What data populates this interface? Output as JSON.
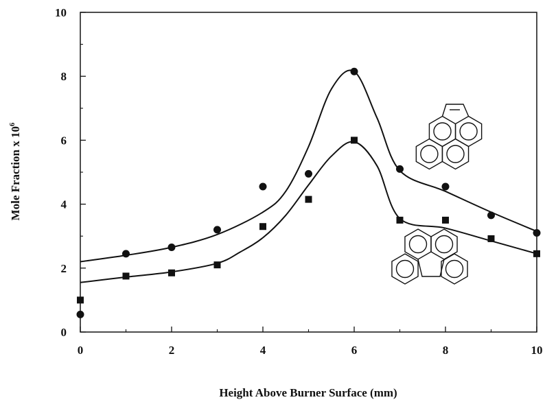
{
  "chart_data": {
    "type": "scatter",
    "title": "",
    "xlabel": "Height Above Burner Surface (mm)",
    "ylabel": "Mole Fraction x 10",
    "ylabel_exponent": "6",
    "xlim": [
      0,
      10
    ],
    "ylim": [
      0,
      10
    ],
    "x_ticks": [
      "0",
      "2",
      "4",
      "6",
      "8",
      "10"
    ],
    "y_ticks": [
      "0",
      "2",
      "4",
      "6",
      "8",
      "10"
    ],
    "grid": false,
    "legend": "none",
    "series": [
      {
        "marker": "circle",
        "color": "#111111",
        "x": [
          0,
          1,
          2,
          3,
          4,
          5,
          6,
          7,
          8,
          9,
          10
        ],
        "y": [
          0.55,
          2.45,
          2.65,
          3.2,
          4.55,
          4.95,
          8.15,
          5.1,
          4.55,
          3.65,
          3.1
        ],
        "fit_x": [
          0,
          1,
          2,
          3,
          4,
          4.5,
          5,
          5.5,
          6,
          6.5,
          7,
          8,
          9,
          10
        ],
        "fit_y": [
          2.2,
          2.4,
          2.65,
          3.05,
          3.75,
          4.4,
          5.8,
          7.6,
          8.15,
          6.7,
          5.05,
          4.4,
          3.75,
          3.15
        ]
      },
      {
        "marker": "square",
        "color": "#111111",
        "x": [
          0,
          1,
          2,
          3,
          4,
          5,
          6,
          7,
          8,
          9,
          10
        ],
        "y": [
          1.0,
          1.75,
          1.85,
          2.1,
          3.3,
          4.15,
          6.0,
          3.5,
          3.5,
          2.92,
          2.45
        ],
        "fit_x": [
          0,
          1,
          2,
          3,
          3.5,
          4,
          4.5,
          5,
          5.5,
          6,
          6.5,
          7,
          8,
          9,
          10
        ],
        "fit_y": [
          1.55,
          1.72,
          1.88,
          2.15,
          2.5,
          2.95,
          3.65,
          4.6,
          5.5,
          5.95,
          5.2,
          3.55,
          3.25,
          2.85,
          2.45
        ]
      }
    ]
  }
}
